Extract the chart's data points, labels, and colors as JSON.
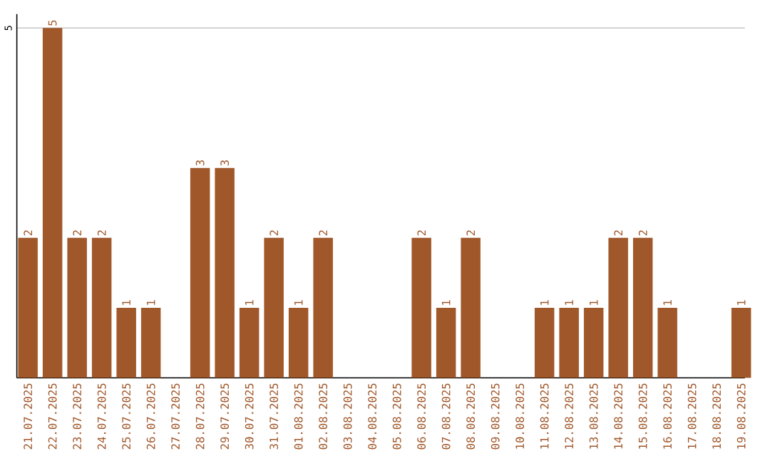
{
  "chart_data": {
    "type": "bar",
    "categories": [
      "21.07.2025",
      "22.07.2025",
      "23.07.2025",
      "24.07.2025",
      "25.07.2025",
      "26.07.2025",
      "27.07.2025",
      "28.07.2025",
      "29.07.2025",
      "30.07.2025",
      "31.07.2025",
      "01.08.2025",
      "02.08.2025",
      "03.08.2025",
      "04.08.2025",
      "05.08.2025",
      "06.08.2025",
      "07.08.2025",
      "08.08.2025",
      "09.08.2025",
      "10.08.2025",
      "11.08.2025",
      "12.08.2025",
      "13.08.2025",
      "14.08.2025",
      "15.08.2025",
      "16.08.2025",
      "17.08.2025",
      "18.08.2025",
      "19.08.2025"
    ],
    "values": [
      2,
      5,
      2,
      2,
      1,
      1,
      null,
      3,
      3,
      1,
      2,
      1,
      2,
      null,
      null,
      null,
      2,
      1,
      2,
      null,
      null,
      1,
      1,
      1,
      2,
      2,
      1,
      null,
      null,
      1
    ],
    "color": "#a0572a",
    "ylim": [
      0,
      5.2
    ],
    "yticks": [
      5
    ],
    "grid": "y",
    "data_labels": true
  }
}
